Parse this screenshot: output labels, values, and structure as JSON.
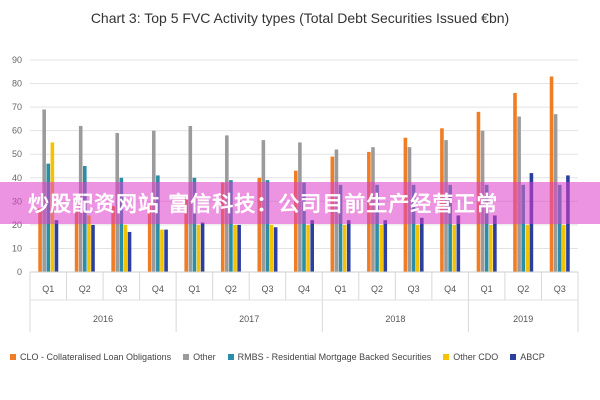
{
  "overlay": {
    "text": "炒股配资网站 富信科技：公司目前生产经营正常",
    "color": "#e040c8"
  },
  "chart_data": {
    "type": "bar",
    "title": "Chart 3: Top 5 FVC Activity types (Total Debt Securities Issued €bn)",
    "xlabel": "",
    "ylabel": "",
    "ylim": [
      0,
      90
    ],
    "yticks": [
      0,
      10,
      20,
      30,
      40,
      50,
      60,
      70,
      80,
      90
    ],
    "grid": true,
    "legend_position": "bottom",
    "categories": [
      "Q1",
      "Q2",
      "Q3",
      "Q4",
      "Q1",
      "Q2",
      "Q3",
      "Q4",
      "Q1",
      "Q2",
      "Q3",
      "Q4",
      "Q1",
      "Q2",
      "Q3"
    ],
    "groups": [
      {
        "label": "2016",
        "count": 4
      },
      {
        "label": "2017",
        "count": 4
      },
      {
        "label": "2018",
        "count": 4
      },
      {
        "label": "2019",
        "count": 3
      }
    ],
    "series": [
      {
        "name": "CLO - Collateralised Loan Obligations",
        "color": "#f07c24",
        "values": [
          27,
          26,
          28,
          29,
          32,
          38,
          40,
          43,
          49,
          51,
          57,
          61,
          68,
          76,
          83
        ]
      },
      {
        "name": "Other",
        "color": "#9b9b9b",
        "values": [
          69,
          62,
          59,
          60,
          62,
          58,
          56,
          55,
          52,
          53,
          53,
          56,
          60,
          66,
          67
        ]
      },
      {
        "name": "RMBS - Residential Mortgage Backed Securities",
        "color": "#2a8ea6",
        "values": [
          46,
          45,
          40,
          41,
          40,
          39,
          39,
          38,
          37,
          37,
          37,
          37,
          37,
          37,
          37
        ]
      },
      {
        "name": "Other CDO",
        "color": "#f5c200",
        "values": [
          55,
          24,
          20,
          18,
          20,
          20,
          20,
          20,
          20,
          20,
          20,
          20,
          20,
          20,
          20
        ]
      },
      {
        "name": "ABCP",
        "color": "#2b3f9e",
        "values": [
          22,
          20,
          17,
          18,
          21,
          20,
          19,
          22,
          22,
          22,
          23,
          24,
          24,
          42,
          41
        ]
      }
    ]
  }
}
